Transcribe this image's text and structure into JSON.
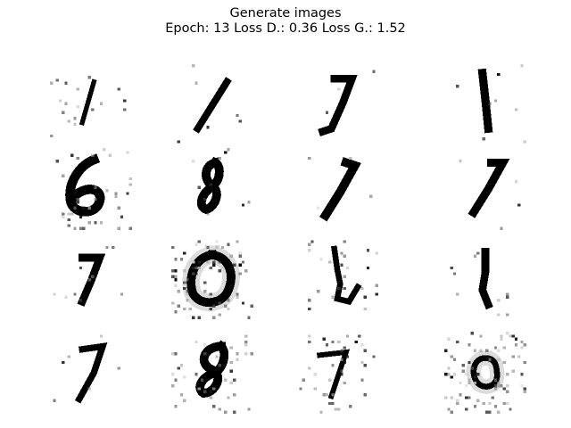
{
  "figure": {
    "title_line1": "Generate images",
    "title_line2": "Epoch: 13 Loss D.: 0.36 Loss G.: 1.52"
  },
  "grid": {
    "rows": 4,
    "cols": 4,
    "colormap": "gray_r",
    "ink_color": "#000000",
    "background_color": "#ffffff",
    "samples": [
      {
        "digit": "1"
      },
      {
        "digit": "1"
      },
      {
        "digit": "7"
      },
      {
        "digit": "1"
      },
      {
        "digit": "6"
      },
      {
        "digit": "8"
      },
      {
        "digit": "7"
      },
      {
        "digit": "7"
      },
      {
        "digit": "7"
      },
      {
        "digit": "0"
      },
      {
        "digit": "4"
      },
      {
        "digit": "1"
      },
      {
        "digit": "7"
      },
      {
        "digit": "8"
      },
      {
        "digit": "7"
      },
      {
        "digit": "0"
      }
    ]
  }
}
